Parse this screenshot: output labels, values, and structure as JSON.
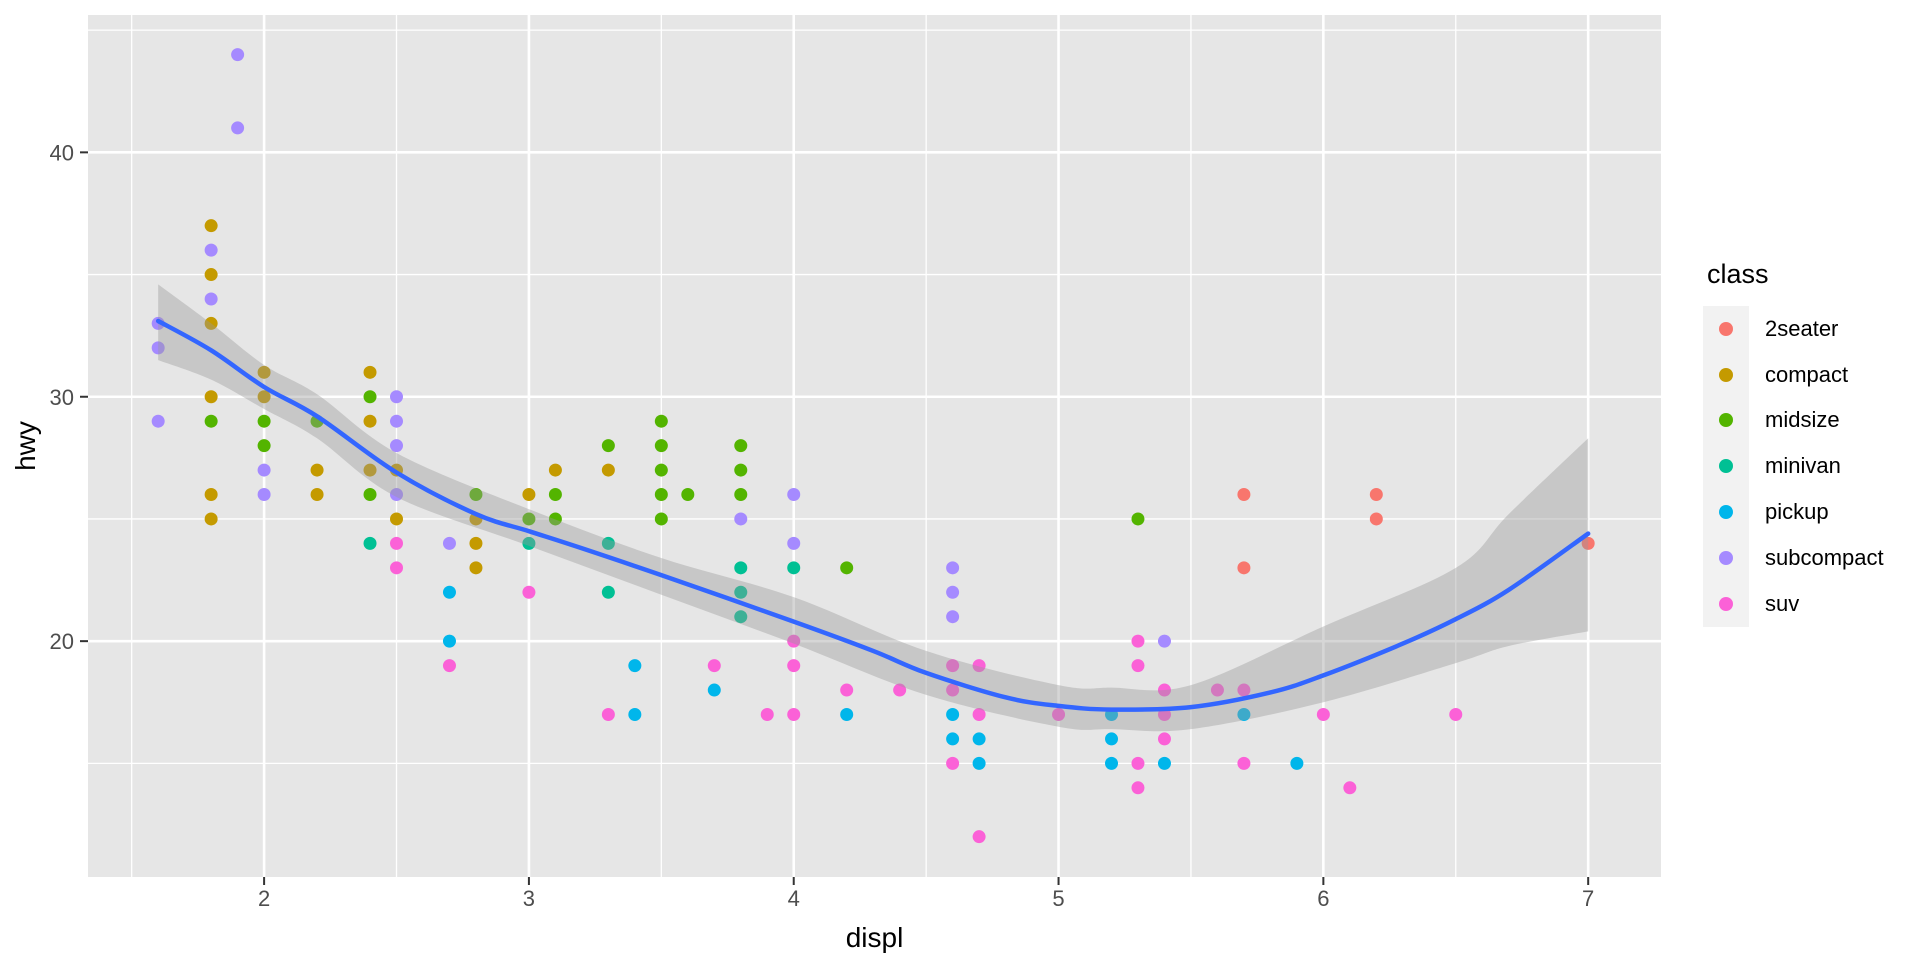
{
  "style": {
    "figure_background": "#FFFFFF",
    "panel_background": "#E6E6E6",
    "grid_color": "#FFFFFF",
    "tick_label_color": "#4D4D4D",
    "tick_mark_color": "#333333",
    "axis_title_color": "#000000"
  },
  "axes": {
    "x": {
      "title": "displ",
      "tick_labels": [
        "2",
        "3",
        "4",
        "5",
        "6",
        "7"
      ]
    },
    "y": {
      "title": "hwy",
      "tick_labels": [
        "20",
        "30",
        "40"
      ]
    }
  },
  "legend": {
    "title": "class",
    "key_fill": "#F2F2F2"
  },
  "chart_data": {
    "type": "scatter",
    "xlabel": "displ",
    "ylabel": "hwy",
    "x_range": [
      1.335,
      7.275
    ],
    "y_range": [
      10.35,
      45.62
    ],
    "x_ticks": [
      2,
      3,
      4,
      5,
      6,
      7
    ],
    "x_minor_ticks": [
      1.5,
      2.5,
      3.5,
      4.5,
      5.5,
      6.5
    ],
    "y_ticks": [
      20,
      30,
      40
    ],
    "y_minor_ticks": [
      15,
      25,
      35,
      45
    ],
    "grid": true,
    "legend_position": "right",
    "point_radius": 6.5,
    "classes": [
      {
        "name": "2seater",
        "color": "#F8766D"
      },
      {
        "name": "compact",
        "color": "#C49A00"
      },
      {
        "name": "midsize",
        "color": "#53B400"
      },
      {
        "name": "minivan",
        "color": "#00C094"
      },
      {
        "name": "pickup",
        "color": "#00B6EB"
      },
      {
        "name": "subcompact",
        "color": "#A58AFF"
      },
      {
        "name": "suv",
        "color": "#FB61D7"
      }
    ],
    "points": [
      [
        1.6,
        33,
        "subcompact"
      ],
      [
        1.6,
        32,
        "subcompact"
      ],
      [
        1.6,
        29,
        "subcompact"
      ],
      [
        1.8,
        37,
        "compact"
      ],
      [
        1.8,
        36,
        "subcompact"
      ],
      [
        1.8,
        35,
        "compact"
      ],
      [
        1.8,
        34,
        "subcompact"
      ],
      [
        1.8,
        33,
        "compact"
      ],
      [
        1.8,
        30,
        "compact"
      ],
      [
        1.8,
        29,
        "midsize"
      ],
      [
        1.8,
        26,
        "compact"
      ],
      [
        1.8,
        25,
        "compact"
      ],
      [
        1.9,
        44,
        "subcompact"
      ],
      [
        1.9,
        41,
        "subcompact"
      ],
      [
        2.0,
        31,
        "compact"
      ],
      [
        2.0,
        30,
        "compact"
      ],
      [
        2.0,
        29,
        "midsize"
      ],
      [
        2.0,
        28,
        "midsize"
      ],
      [
        2.0,
        27,
        "subcompact"
      ],
      [
        2.0,
        26,
        "subcompact"
      ],
      [
        2.2,
        29,
        "midsize"
      ],
      [
        2.2,
        27,
        "compact"
      ],
      [
        2.2,
        26,
        "compact"
      ],
      [
        2.4,
        31,
        "compact"
      ],
      [
        2.4,
        30,
        "midsize"
      ],
      [
        2.4,
        29,
        "compact"
      ],
      [
        2.4,
        27,
        "compact"
      ],
      [
        2.4,
        26,
        "midsize"
      ],
      [
        2.4,
        24,
        "minivan"
      ],
      [
        2.5,
        30,
        "subcompact"
      ],
      [
        2.5,
        29,
        "subcompact"
      ],
      [
        2.5,
        28,
        "subcompact"
      ],
      [
        2.5,
        27,
        "compact"
      ],
      [
        2.5,
        26,
        "subcompact"
      ],
      [
        2.5,
        25,
        "compact"
      ],
      [
        2.5,
        24,
        "suv"
      ],
      [
        2.5,
        23,
        "suv"
      ],
      [
        2.7,
        24,
        "subcompact"
      ],
      [
        2.7,
        22,
        "pickup"
      ],
      [
        2.7,
        20,
        "pickup"
      ],
      [
        2.7,
        19,
        "suv"
      ],
      [
        2.8,
        26,
        "midsize"
      ],
      [
        2.8,
        25,
        "compact"
      ],
      [
        2.8,
        24,
        "compact"
      ],
      [
        2.8,
        23,
        "compact"
      ],
      [
        3.0,
        26,
        "compact"
      ],
      [
        3.0,
        25,
        "midsize"
      ],
      [
        3.0,
        24,
        "minivan"
      ],
      [
        3.0,
        22,
        "suv"
      ],
      [
        3.1,
        27,
        "compact"
      ],
      [
        3.1,
        26,
        "midsize"
      ],
      [
        3.1,
        25,
        "midsize"
      ],
      [
        3.3,
        28,
        "midsize"
      ],
      [
        3.3,
        27,
        "compact"
      ],
      [
        3.3,
        24,
        "minivan"
      ],
      [
        3.3,
        22,
        "minivan"
      ],
      [
        3.3,
        17,
        "suv"
      ],
      [
        3.4,
        19,
        "pickup"
      ],
      [
        3.4,
        17,
        "pickup"
      ],
      [
        3.5,
        29,
        "midsize"
      ],
      [
        3.5,
        28,
        "midsize"
      ],
      [
        3.5,
        27,
        "midsize"
      ],
      [
        3.5,
        26,
        "midsize"
      ],
      [
        3.5,
        25,
        "midsize"
      ],
      [
        3.6,
        26,
        "midsize"
      ],
      [
        3.7,
        19,
        "suv"
      ],
      [
        3.7,
        18,
        "pickup"
      ],
      [
        3.8,
        28,
        "midsize"
      ],
      [
        3.8,
        27,
        "midsize"
      ],
      [
        3.8,
        26,
        "midsize"
      ],
      [
        3.8,
        25,
        "subcompact"
      ],
      [
        3.8,
        23,
        "minivan"
      ],
      [
        3.8,
        22,
        "minivan"
      ],
      [
        3.8,
        21,
        "minivan"
      ],
      [
        3.9,
        17,
        "suv"
      ],
      [
        4.0,
        26,
        "subcompact"
      ],
      [
        4.0,
        24,
        "subcompact"
      ],
      [
        4.0,
        23,
        "minivan"
      ],
      [
        4.0,
        20,
        "suv"
      ],
      [
        4.0,
        19,
        "suv"
      ],
      [
        4.0,
        17,
        "suv"
      ],
      [
        4.2,
        23,
        "midsize"
      ],
      [
        4.2,
        18,
        "suv"
      ],
      [
        4.2,
        17,
        "pickup"
      ],
      [
        4.4,
        18,
        "suv"
      ],
      [
        4.6,
        23,
        "subcompact"
      ],
      [
        4.6,
        22,
        "subcompact"
      ],
      [
        4.6,
        21,
        "subcompact"
      ],
      [
        4.6,
        19,
        "suv"
      ],
      [
        4.6,
        18,
        "suv"
      ],
      [
        4.6,
        17,
        "pickup"
      ],
      [
        4.6,
        16,
        "pickup"
      ],
      [
        4.6,
        15,
        "suv"
      ],
      [
        4.7,
        19,
        "suv"
      ],
      [
        4.7,
        17,
        "suv"
      ],
      [
        4.7,
        16,
        "pickup"
      ],
      [
        4.7,
        15,
        "pickup"
      ],
      [
        4.7,
        12,
        "suv"
      ],
      [
        5.0,
        17,
        "suv"
      ],
      [
        5.2,
        17,
        "pickup"
      ],
      [
        5.2,
        16,
        "pickup"
      ],
      [
        5.2,
        15,
        "pickup"
      ],
      [
        5.3,
        25,
        "midsize"
      ],
      [
        5.3,
        20,
        "suv"
      ],
      [
        5.3,
        19,
        "suv"
      ],
      [
        5.3,
        15,
        "suv"
      ],
      [
        5.3,
        14,
        "suv"
      ],
      [
        5.4,
        20,
        "subcompact"
      ],
      [
        5.4,
        18,
        "suv"
      ],
      [
        5.4,
        17,
        "suv"
      ],
      [
        5.4,
        16,
        "suv"
      ],
      [
        5.4,
        15,
        "pickup"
      ],
      [
        5.6,
        18,
        "suv"
      ],
      [
        5.7,
        26,
        "2seater"
      ],
      [
        5.7,
        23,
        "2seater"
      ],
      [
        5.7,
        18,
        "suv"
      ],
      [
        5.7,
        17,
        "pickup"
      ],
      [
        5.7,
        15,
        "suv"
      ],
      [
        5.9,
        15,
        "pickup"
      ],
      [
        6.0,
        17,
        "suv"
      ],
      [
        6.1,
        14,
        "suv"
      ],
      [
        6.2,
        26,
        "2seater"
      ],
      [
        6.2,
        25,
        "2seater"
      ],
      [
        6.5,
        17,
        "suv"
      ],
      [
        7.0,
        24,
        "2seater"
      ]
    ],
    "smooth": {
      "color": "#3366FF",
      "width": 4.5,
      "ribbon_fill": "rgba(153,153,153,0.4)",
      "line": [
        [
          1.6,
          33.1
        ],
        [
          1.8,
          31.9
        ],
        [
          2.0,
          30.4
        ],
        [
          2.2,
          29.2
        ],
        [
          2.5,
          26.9
        ],
        [
          2.8,
          25.2
        ],
        [
          3.0,
          24.5
        ],
        [
          3.2,
          23.8
        ],
        [
          3.5,
          22.7
        ],
        [
          4.0,
          20.8
        ],
        [
          4.3,
          19.6
        ],
        [
          4.5,
          18.7
        ],
        [
          4.8,
          17.7
        ],
        [
          5.0,
          17.35
        ],
        [
          5.2,
          17.2
        ],
        [
          5.5,
          17.3
        ],
        [
          5.8,
          17.9
        ],
        [
          6.0,
          18.6
        ],
        [
          6.3,
          19.9
        ],
        [
          6.5,
          20.9
        ],
        [
          6.7,
          22.1
        ],
        [
          7.0,
          24.4
        ]
      ],
      "ribbon": [
        [
          1.6,
          31.5,
          34.6
        ],
        [
          1.8,
          30.7,
          33.0
        ],
        [
          2.0,
          29.5,
          31.3
        ],
        [
          2.2,
          28.3,
          30.1
        ],
        [
          2.5,
          25.9,
          27.7
        ],
        [
          3.0,
          23.9,
          25.4
        ],
        [
          3.5,
          21.9,
          23.4
        ],
        [
          4.0,
          19.9,
          21.8
        ],
        [
          4.5,
          17.8,
          19.6
        ],
        [
          5.0,
          16.5,
          18.2
        ],
        [
          5.2,
          16.4,
          18.1
        ],
        [
          5.5,
          16.4,
          18.2
        ],
        [
          6.0,
          17.5,
          20.6
        ],
        [
          6.5,
          19.1,
          23.0
        ],
        [
          6.7,
          19.8,
          25.2
        ],
        [
          7.0,
          20.4,
          28.3
        ]
      ]
    }
  }
}
